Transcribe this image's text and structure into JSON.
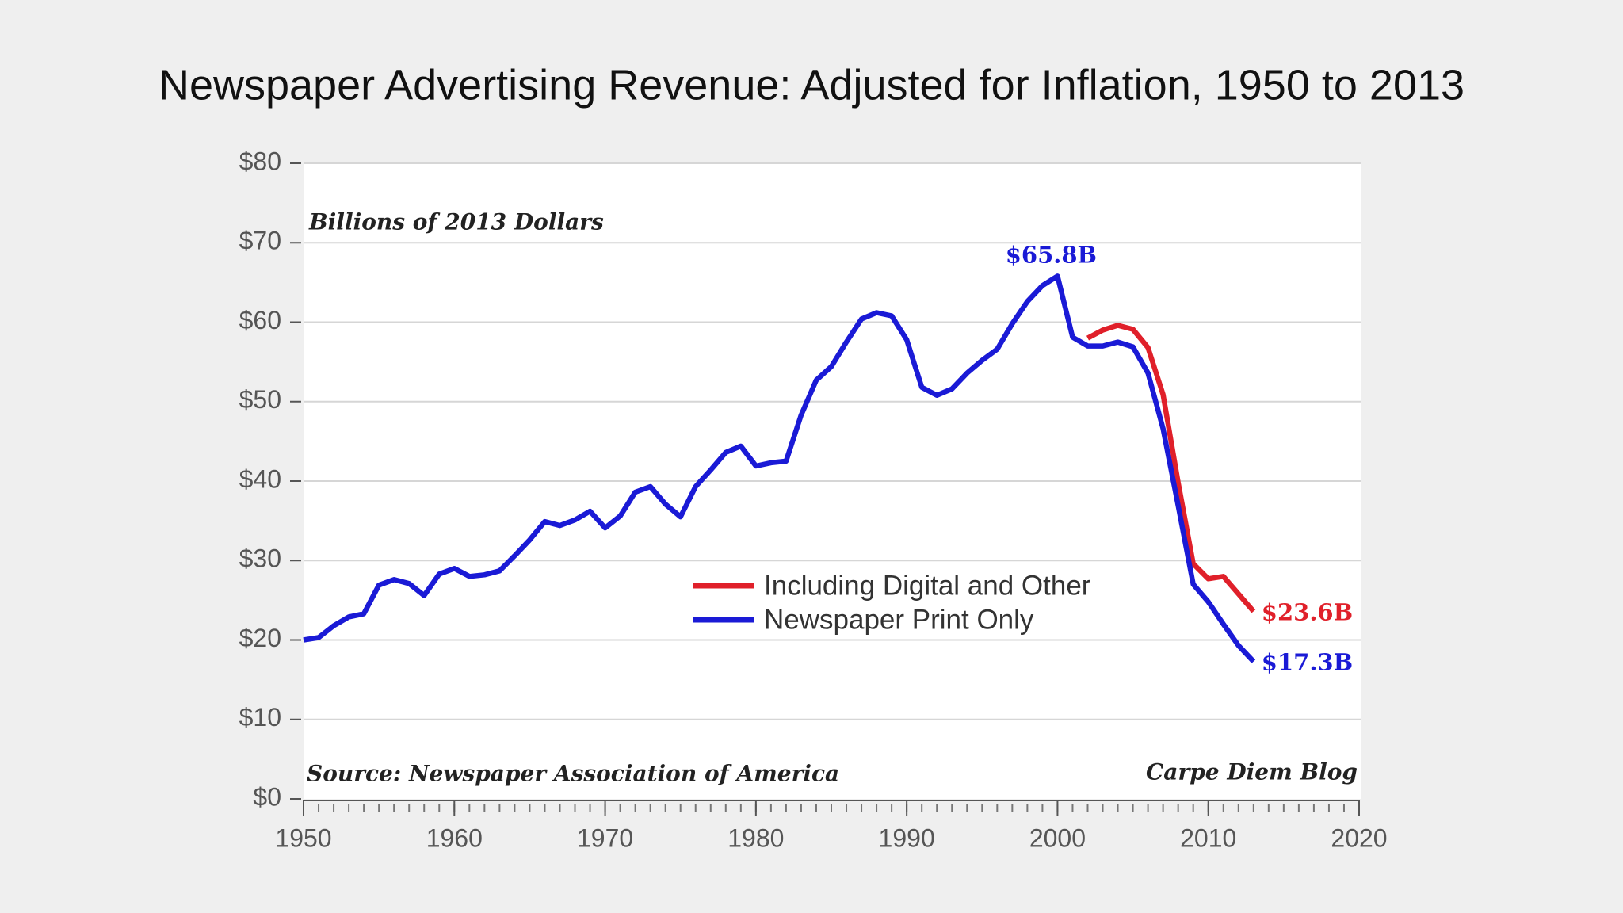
{
  "chart_data": {
    "type": "line",
    "title": "Newspaper Advertising Revenue: Adjusted for Inflation, 1950 to 2013",
    "ylabel": "Billions of 2013 Dollars",
    "source": "Source: Newspaper Association of America",
    "credit": "Carpe Diem Blog",
    "x": [
      1950,
      1951,
      1952,
      1953,
      1954,
      1955,
      1956,
      1957,
      1958,
      1959,
      1960,
      1961,
      1962,
      1963,
      1964,
      1965,
      1966,
      1967,
      1968,
      1969,
      1970,
      1971,
      1972,
      1973,
      1974,
      1975,
      1976,
      1977,
      1978,
      1979,
      1980,
      1981,
      1982,
      1983,
      1984,
      1985,
      1986,
      1987,
      1988,
      1989,
      1990,
      1991,
      1992,
      1993,
      1994,
      1995,
      1996,
      1997,
      1998,
      1999,
      2000,
      2001,
      2002,
      2003,
      2004,
      2005,
      2006,
      2007,
      2008,
      2009,
      2010,
      2011,
      2012,
      2013
    ],
    "series": [
      {
        "name": "Including Digital and Other",
        "color": "#e0202a",
        "values": [
          null,
          null,
          null,
          null,
          null,
          null,
          null,
          null,
          null,
          null,
          null,
          null,
          null,
          null,
          null,
          null,
          null,
          null,
          null,
          null,
          null,
          null,
          null,
          null,
          null,
          null,
          null,
          null,
          null,
          null,
          null,
          null,
          null,
          null,
          null,
          null,
          null,
          null,
          null,
          null,
          null,
          null,
          null,
          null,
          null,
          null,
          null,
          null,
          null,
          null,
          null,
          null,
          58.0,
          59.0,
          59.6,
          59.1,
          56.8,
          50.9,
          39.8,
          29.6,
          27.7,
          28.0,
          25.8,
          23.6
        ],
        "value_labels": [
          null,
          null,
          null,
          null,
          null,
          null,
          null,
          null,
          null,
          null,
          null,
          null,
          null,
          null,
          null,
          null,
          null,
          null,
          null,
          null,
          null,
          null,
          null,
          null,
          null,
          null,
          null,
          null,
          null,
          null,
          null,
          null,
          null,
          null,
          null,
          null,
          null,
          null,
          null,
          null,
          null,
          null,
          null,
          null,
          null,
          null,
          null,
          null,
          null,
          null,
          null,
          null,
          null,
          null,
          null,
          null,
          null,
          null,
          null,
          null,
          null,
          null,
          null,
          "$23.6B"
        ]
      },
      {
        "name": "Newspaper Print Only",
        "color": "#1a1ad6",
        "values": [
          20.0,
          20.3,
          21.8,
          22.9,
          23.3,
          26.9,
          27.6,
          27.1,
          25.6,
          28.3,
          29.0,
          28.0,
          28.2,
          28.7,
          30.6,
          32.6,
          34.9,
          34.4,
          35.1,
          36.2,
          34.1,
          35.6,
          38.6,
          39.3,
          37.1,
          35.5,
          39.3,
          41.4,
          43.6,
          44.4,
          41.9,
          42.3,
          42.5,
          48.3,
          52.7,
          54.4,
          57.5,
          60.4,
          61.2,
          60.8,
          57.8,
          51.8,
          50.8,
          51.6,
          53.6,
          55.2,
          56.6,
          59.8,
          62.6,
          64.6,
          65.8,
          58.1,
          57.0,
          57.0,
          57.5,
          56.9,
          53.6,
          46.6,
          36.9,
          27.0,
          24.8,
          22.0,
          19.3,
          17.3
        ],
        "value_labels": [
          null,
          null,
          null,
          null,
          null,
          null,
          null,
          null,
          null,
          null,
          null,
          null,
          null,
          null,
          null,
          null,
          null,
          null,
          null,
          null,
          null,
          null,
          null,
          null,
          null,
          null,
          null,
          null,
          null,
          null,
          null,
          null,
          null,
          null,
          null,
          null,
          null,
          null,
          null,
          null,
          null,
          null,
          null,
          null,
          null,
          null,
          null,
          null,
          null,
          null,
          "$65.8B",
          null,
          null,
          null,
          null,
          null,
          null,
          null,
          null,
          null,
          null,
          null,
          null,
          "$17.3B"
        ]
      }
    ],
    "xlim": [
      1950,
      2020
    ],
    "xticks": [
      1950,
      1960,
      1970,
      1980,
      1990,
      2000,
      2010,
      2020
    ],
    "xminor_step": 1,
    "ylim": [
      0,
      80
    ],
    "yticks": [
      {
        "value": 0,
        "label": "$0"
      },
      {
        "value": 10,
        "label": "$10"
      },
      {
        "value": 20,
        "label": "$20"
      },
      {
        "value": 30,
        "label": "$30"
      },
      {
        "value": 40,
        "label": "$40"
      },
      {
        "value": 50,
        "label": "$50"
      },
      {
        "value": 60,
        "label": "$60"
      },
      {
        "value": 70,
        "label": "$70"
      },
      {
        "value": 80,
        "label": "$80"
      }
    ],
    "grid": true
  }
}
